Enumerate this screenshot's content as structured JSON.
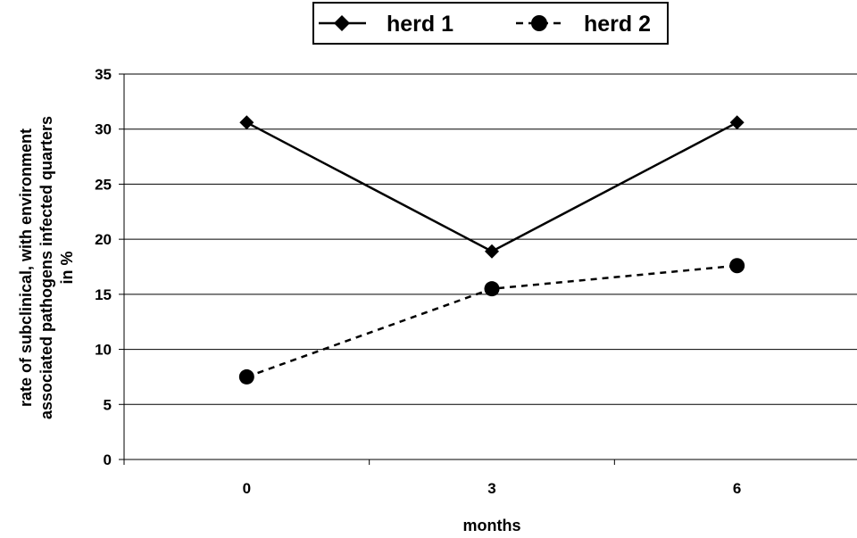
{
  "chart_data": {
    "type": "line",
    "categories": [
      "0",
      "3",
      "6"
    ],
    "series": [
      {
        "name": "herd 1",
        "values": [
          30.6,
          18.9,
          30.6
        ],
        "marker": "diamond",
        "line": "solid",
        "color": "#000000"
      },
      {
        "name": "herd 2",
        "values": [
          7.5,
          15.5,
          17.6
        ],
        "marker": "circle",
        "line": "dashed",
        "color": "#000000"
      }
    ],
    "xlabel": "months",
    "ylabel": [
      "rate of subclinical, with environment",
      "associated pathogens infected quarters",
      "in %"
    ],
    "ylim": [
      0,
      35
    ],
    "yticks": [
      0,
      5,
      10,
      15,
      20,
      25,
      30,
      35
    ],
    "grid": true,
    "legend_position": "top"
  }
}
